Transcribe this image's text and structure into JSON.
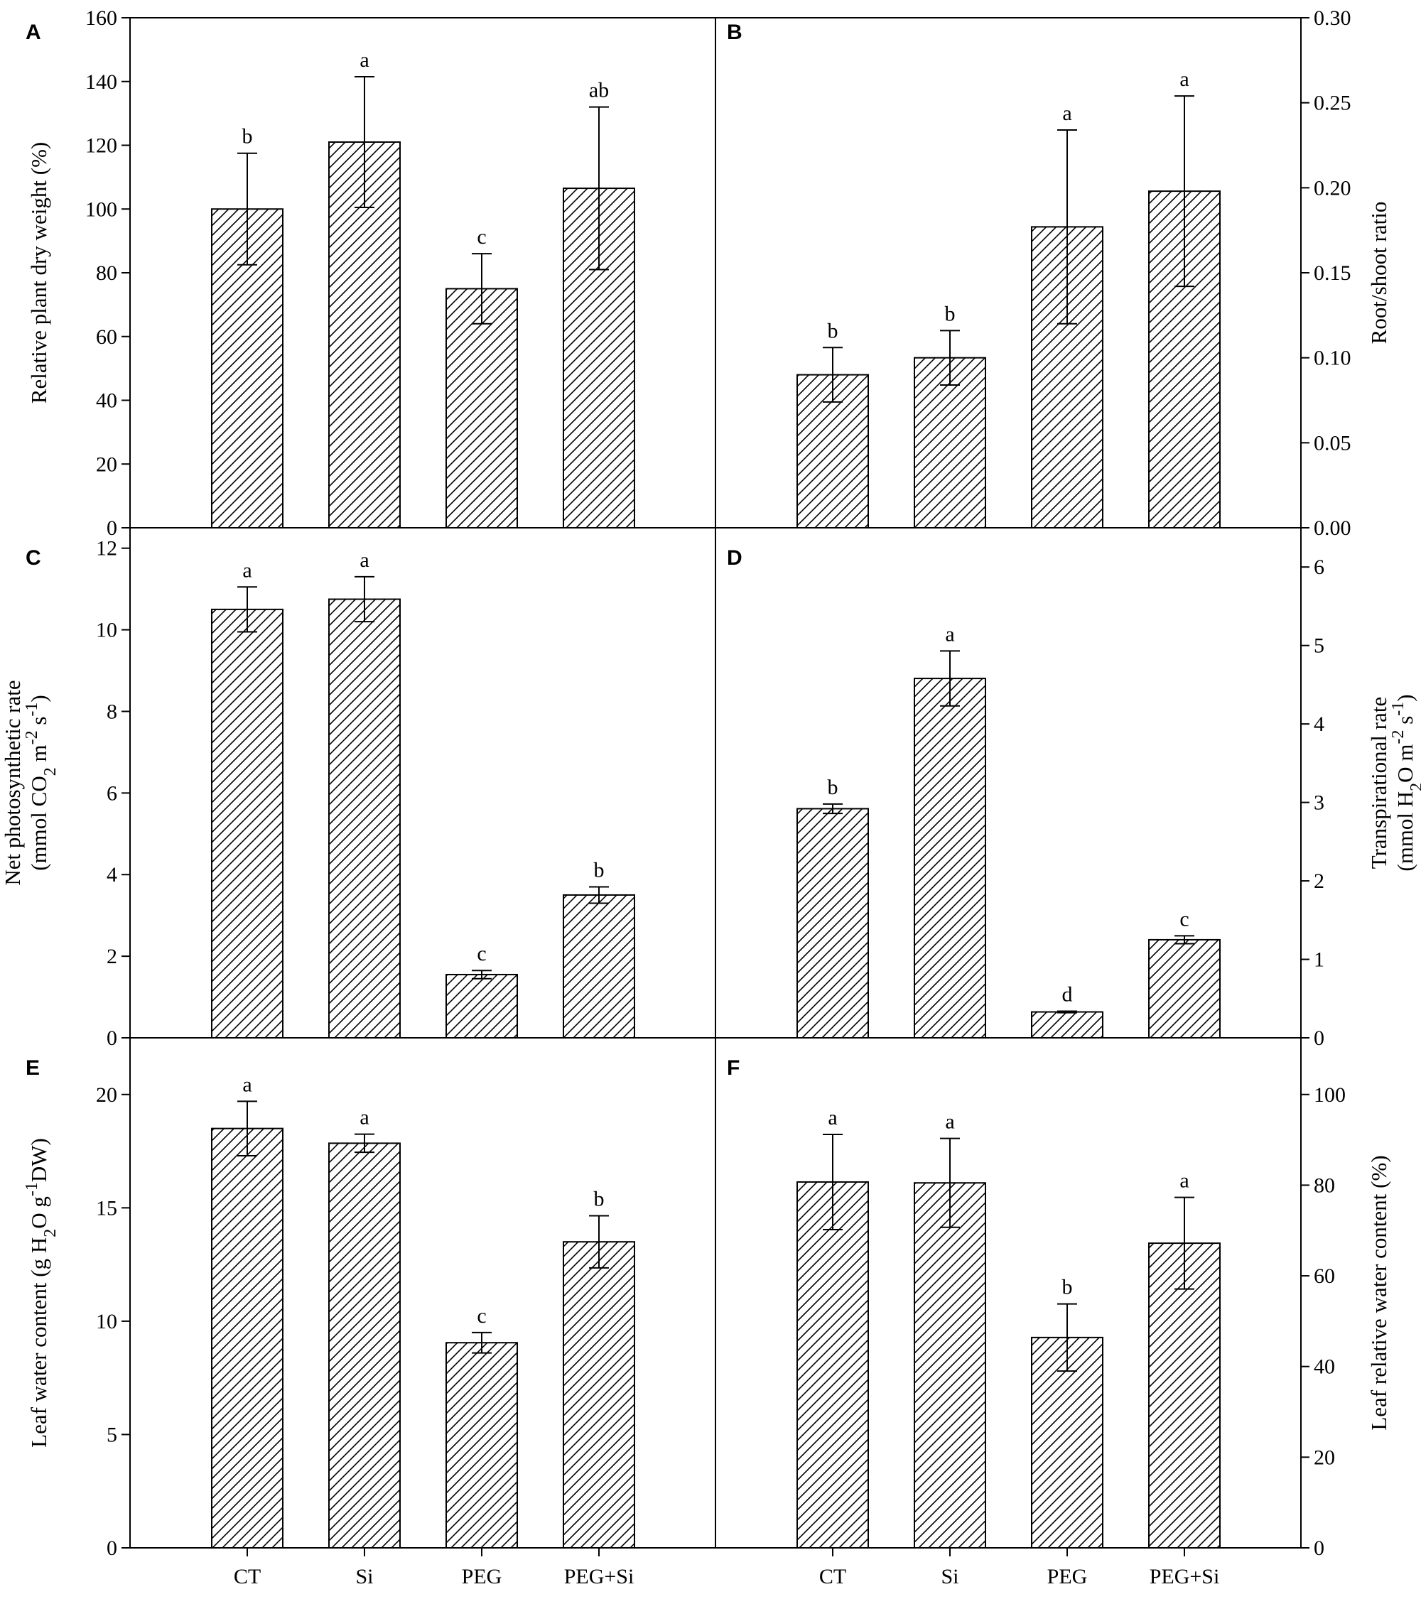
{
  "chart_data": [
    {
      "panel": "A",
      "type": "bar",
      "categories": [
        "CT",
        "Si",
        "PEG",
        "PEG+Si"
      ],
      "values": [
        100,
        121,
        75,
        106.5
      ],
      "errors": [
        17.5,
        20.5,
        11,
        25.5
      ],
      "labels": [
        "b",
        "a",
        "c",
        "ab"
      ],
      "ylabel_lines": [
        "Relative plant dry weight (%)"
      ],
      "ylim": [
        0,
        160
      ],
      "yticks": [
        0,
        20,
        40,
        60,
        80,
        100,
        120,
        140,
        160
      ],
      "yaxis_side": "left",
      "show_xticklabels": false
    },
    {
      "panel": "B",
      "type": "bar",
      "categories": [
        "CT",
        "Si",
        "PEG",
        "PEG+Si"
      ],
      "values": [
        0.09,
        0.1,
        0.177,
        0.198
      ],
      "errors": [
        0.016,
        0.016,
        0.057,
        0.056
      ],
      "labels": [
        "b",
        "b",
        "a",
        "a"
      ],
      "ylabel_lines": [
        "Root/shoot ratio"
      ],
      "ylim": [
        0,
        0.3
      ],
      "yticks": [
        "0.00",
        "0.05",
        "0.10",
        "0.15",
        "0.20",
        "0.25",
        "0.30"
      ],
      "yaxis_side": "right",
      "show_xticklabels": false
    },
    {
      "panel": "C",
      "type": "bar",
      "categories": [
        "CT",
        "Si",
        "PEG",
        "PEG+Si"
      ],
      "values": [
        10.5,
        10.75,
        1.55,
        3.5
      ],
      "errors": [
        0.55,
        0.55,
        0.1,
        0.2
      ],
      "labels": [
        "a",
        "a",
        "c",
        "b"
      ],
      "ylabel_lines": [
        "Net photosynthetic rate",
        "(mmol CO2 m-2 s-1)"
      ],
      "ylim": [
        0,
        12.5
      ],
      "yticks": [
        0,
        2,
        4,
        6,
        8,
        10,
        12
      ],
      "yaxis_side": "left",
      "show_xticklabels": false
    },
    {
      "panel": "D",
      "type": "bar",
      "categories": [
        "CT",
        "Si",
        "PEG",
        "PEG+Si"
      ],
      "values": [
        2.92,
        4.58,
        0.33,
        1.25
      ],
      "errors": [
        0.06,
        0.35,
        0.01,
        0.05
      ],
      "labels": [
        "b",
        "a",
        "d",
        "c"
      ],
      "ylabel_lines": [
        "Transpirational rate",
        "(mmol H2O m-2 s-1)"
      ],
      "ylim": [
        0,
        6.5
      ],
      "yticks": [
        0,
        1,
        2,
        3,
        4,
        5,
        6
      ],
      "yaxis_side": "right",
      "show_xticklabels": false
    },
    {
      "panel": "E",
      "type": "bar",
      "categories": [
        "CT",
        "Si",
        "PEG",
        "PEG+Si"
      ],
      "values": [
        18.5,
        17.85,
        9.05,
        13.5
      ],
      "errors": [
        1.2,
        0.4,
        0.45,
        1.15
      ],
      "labels": [
        "a",
        "a",
        "c",
        "b"
      ],
      "ylabel_lines": [
        "Leaf water content (g H2O g-1DW)"
      ],
      "ylim": [
        0,
        22.5
      ],
      "yticks": [
        0,
        5,
        10,
        15,
        20
      ],
      "yaxis_side": "left",
      "show_xticklabels": true
    },
    {
      "panel": "F",
      "type": "bar",
      "categories": [
        "CT",
        "Si",
        "PEG",
        "PEG+Si"
      ],
      "values": [
        80.7,
        80.5,
        46.4,
        67.2
      ],
      "errors": [
        10.5,
        9.8,
        7.4,
        10.1
      ],
      "labels": [
        "a",
        "a",
        "b",
        "a"
      ],
      "ylabel_lines": [
        "Leaf relative water content (%)"
      ],
      "ylim": [
        0,
        112.5
      ],
      "yticks": [
        0,
        20,
        40,
        60,
        80,
        100
      ],
      "yaxis_side": "right",
      "show_xticklabels": true
    }
  ]
}
